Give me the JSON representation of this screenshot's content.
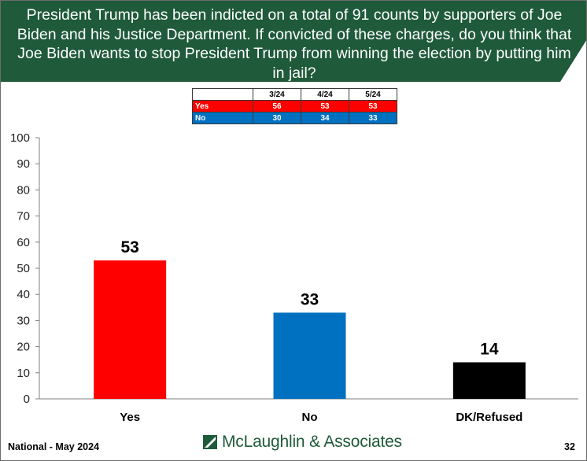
{
  "slide": {
    "title": "President Trump has been indicted on a total of 91 counts by supporters of Joe Biden and his Justice Department. If convicted of these charges, do you think that Joe Biden wants to stop President Trump from winning the election by putting him in jail?",
    "footer": "National - May 2024",
    "logo": "McLaughlin & Associates",
    "page_number": "32",
    "colors": {
      "banner": "#1f5a3a",
      "yes": "#ff0000",
      "no": "#0070c0",
      "dk": "#000000"
    }
  },
  "history_table": {
    "columns": [
      "3/24",
      "4/24",
      "5/24"
    ],
    "rows": [
      {
        "label": "Yes",
        "values": [
          "56",
          "53",
          "53"
        ]
      },
      {
        "label": "No",
        "values": [
          "30",
          "34",
          "33"
        ]
      }
    ]
  },
  "chart_data": {
    "type": "bar",
    "title": "",
    "xlabel": "",
    "ylabel": "",
    "categories": [
      "Yes",
      "No",
      "DK/Refused"
    ],
    "values": [
      53,
      33,
      14
    ],
    "data_labels": [
      "53",
      "33",
      "14"
    ],
    "colors": [
      "#ff0000",
      "#0070c0",
      "#000000"
    ],
    "ylim": [
      0,
      100
    ],
    "yticks": [
      0,
      10,
      20,
      30,
      40,
      50,
      60,
      70,
      80,
      90,
      100
    ],
    "grid": false,
    "legend": "none"
  }
}
